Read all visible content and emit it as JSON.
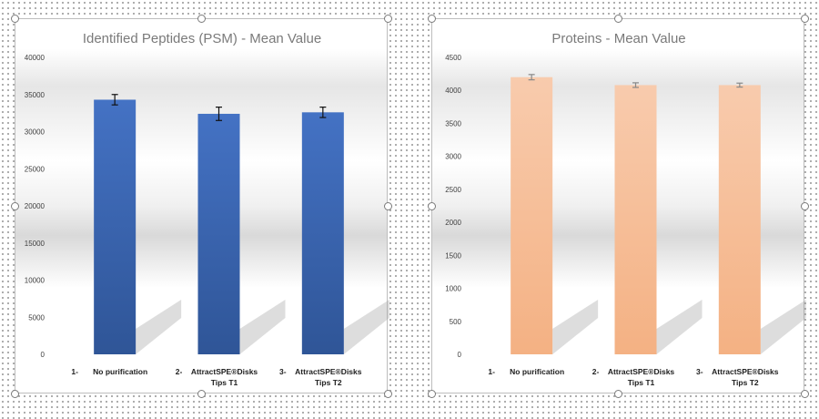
{
  "charts": [
    {
      "id": "left",
      "title": "Identified Peptides (PSM) - Mean Value",
      "bar_color": "#4472c4",
      "bar_color_dark": "#2f5597",
      "error_color": "#111111"
    },
    {
      "id": "right",
      "title": "Proteins - Mean Value",
      "bar_color": "#f8cbad",
      "bar_color_dark": "#f4b183",
      "error_color": "#888888"
    }
  ],
  "chart_data": [
    {
      "type": "bar",
      "title": "Identified Peptides (PSM) - Mean Value",
      "xlabel": "",
      "ylabel": "",
      "categories": [
        {
          "num": "1-",
          "lines": [
            "No purification"
          ]
        },
        {
          "num": "2-",
          "lines": [
            "AttractSPE®Disks",
            "Tips T1"
          ]
        },
        {
          "num": "3-",
          "lines": [
            "AttractSPE®Disks",
            "Tips T2"
          ]
        }
      ],
      "values": [
        34300,
        32400,
        32600
      ],
      "errors": [
        700,
        900,
        700
      ],
      "ylim": [
        0,
        40000
      ],
      "yticks": [
        0,
        5000,
        10000,
        15000,
        20000,
        25000,
        30000,
        35000,
        40000
      ],
      "grid": false,
      "legend": "none"
    },
    {
      "type": "bar",
      "title": "Proteins - Mean Value",
      "xlabel": "",
      "ylabel": "",
      "categories": [
        {
          "num": "1-",
          "lines": [
            "No purification"
          ]
        },
        {
          "num": "2-",
          "lines": [
            "AttractSPE®Disks",
            "Tips T1"
          ]
        },
        {
          "num": "3-",
          "lines": [
            "AttractSPE®Disks",
            "Tips T2"
          ]
        }
      ],
      "values": [
        4200,
        4080,
        4080
      ],
      "errors": [
        40,
        35,
        30
      ],
      "ylim": [
        0,
        4500
      ],
      "yticks": [
        0,
        500,
        1000,
        1500,
        2000,
        2500,
        3000,
        3500,
        4000,
        4500
      ],
      "grid": false,
      "legend": "none"
    }
  ]
}
